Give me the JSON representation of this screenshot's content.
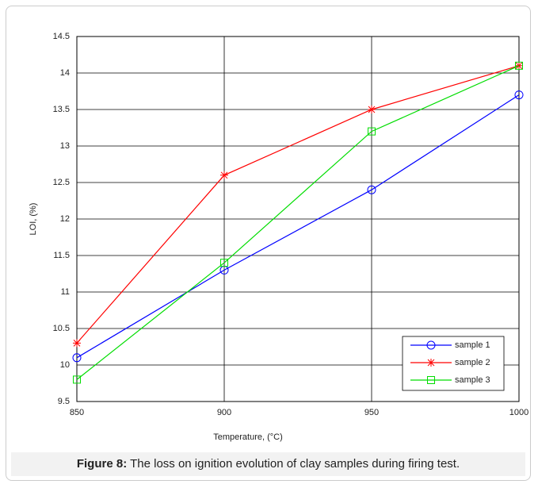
{
  "chart_data": {
    "type": "line",
    "xlabel": "Temperature, (°C)",
    "ylabel": "LOI, (%)",
    "x": [
      850,
      900,
      950,
      1000
    ],
    "series": [
      {
        "name": "sample 1",
        "color": "#0000ff",
        "marker": "circle",
        "values": [
          10.1,
          11.3,
          12.4,
          13.7
        ]
      },
      {
        "name": "sample 2",
        "color": "#ff0000",
        "marker": "star",
        "values": [
          10.3,
          12.6,
          13.5,
          14.1
        ]
      },
      {
        "name": "sample 3",
        "color": "#00dd00",
        "marker": "square",
        "values": [
          9.8,
          11.4,
          13.2,
          14.1
        ]
      }
    ],
    "xlim": [
      850,
      1000
    ],
    "xticks": [
      850,
      900,
      950,
      1000
    ],
    "ylim": [
      9.5,
      14.5
    ],
    "yticks": [
      9.5,
      10,
      10.5,
      11,
      11.5,
      12,
      12.5,
      13,
      13.5,
      14,
      14.5
    ],
    "grid": true,
    "legend": "lower right"
  },
  "caption": {
    "label": "Figure 8:",
    "text": "The loss on ignition evolution of clay samples during firing test."
  }
}
